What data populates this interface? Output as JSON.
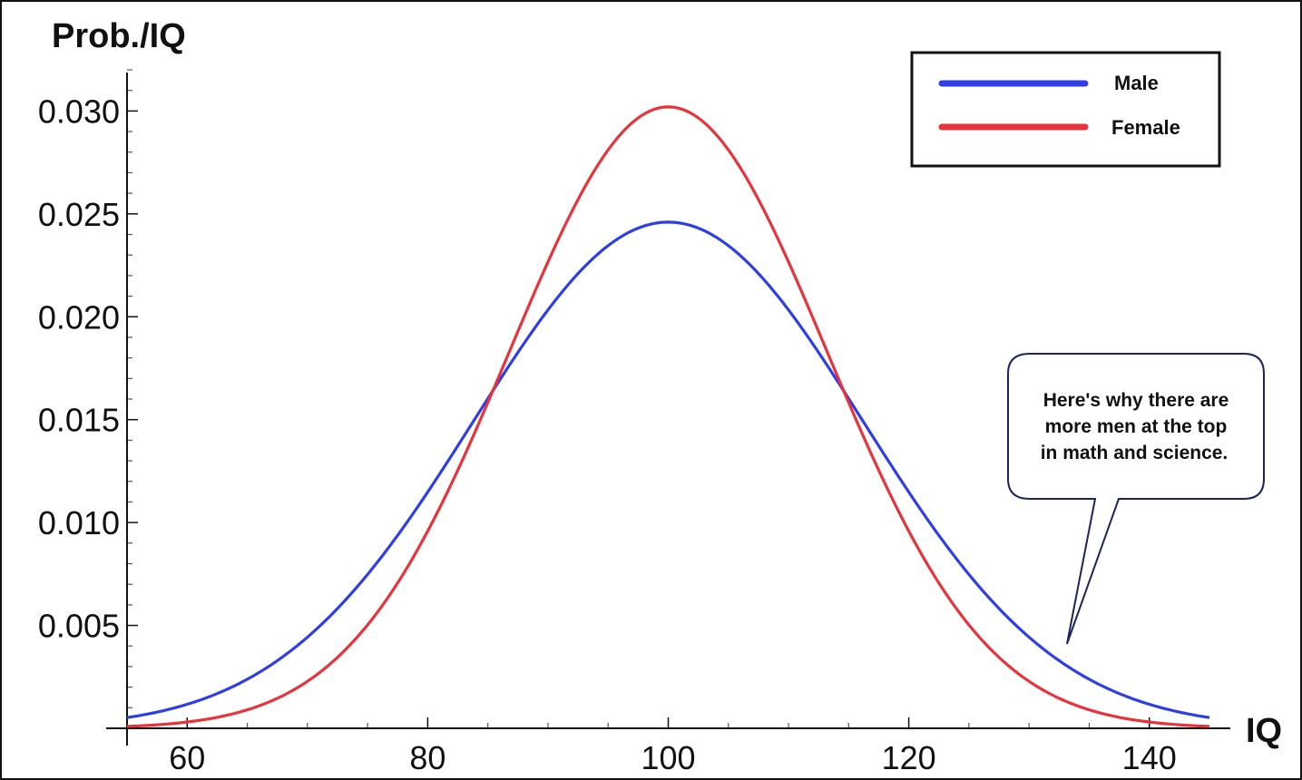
{
  "chart_data": {
    "type": "line",
    "title": "",
    "xlabel": "IQ",
    "ylabel": "Prob./IQ",
    "xlim": [
      55,
      145
    ],
    "ylim": [
      0,
      0.032
    ],
    "x_ticks": [
      60,
      80,
      100,
      120,
      140
    ],
    "y_ticks": [
      0.005,
      0.01,
      0.015,
      0.02,
      0.025,
      0.03
    ],
    "y_tick_labels": [
      "0.005",
      "0.010",
      "0.015",
      "0.020",
      "0.025",
      "0.030"
    ],
    "x_minor_step": 5,
    "y_minor_step": 0.001,
    "grid": false,
    "legend_position": "top-right",
    "series": [
      {
        "name": "Male",
        "color": "#2f3fe8",
        "distribution": "normal",
        "mean": 100,
        "sd": 16.2,
        "peak": 0.0246,
        "x": [
          55,
          60,
          65,
          70,
          75,
          80,
          85,
          90,
          95,
          100,
          105,
          110,
          115,
          120,
          125,
          130,
          135,
          140,
          145
        ],
        "values": [
          0.0005,
          0.0011,
          0.0023,
          0.0043,
          0.0075,
          0.0115,
          0.0162,
          0.0205,
          0.0236,
          0.0246,
          0.0236,
          0.0205,
          0.0162,
          0.0115,
          0.0075,
          0.0043,
          0.0023,
          0.0011,
          0.0005
        ]
      },
      {
        "name": "Female",
        "color": "#e8333b",
        "distribution": "normal",
        "mean": 100,
        "sd": 13.2,
        "peak": 0.0302,
        "x": [
          55,
          60,
          65,
          70,
          75,
          80,
          85,
          90,
          95,
          100,
          105,
          110,
          115,
          120,
          125,
          130,
          135,
          140,
          145
        ],
        "values": [
          9e-05,
          0.0003,
          0.0009,
          0.0024,
          0.005,
          0.0095,
          0.0158,
          0.0227,
          0.0281,
          0.0302,
          0.0281,
          0.0227,
          0.0158,
          0.0095,
          0.005,
          0.0024,
          0.0009,
          0.0003,
          9e-05
        ]
      }
    ],
    "annotation": {
      "lines": [
        "Here's why there are",
        "more men at the top",
        "in math and science."
      ],
      "points_to": {
        "x": 133,
        "y": 0.0045
      }
    }
  }
}
